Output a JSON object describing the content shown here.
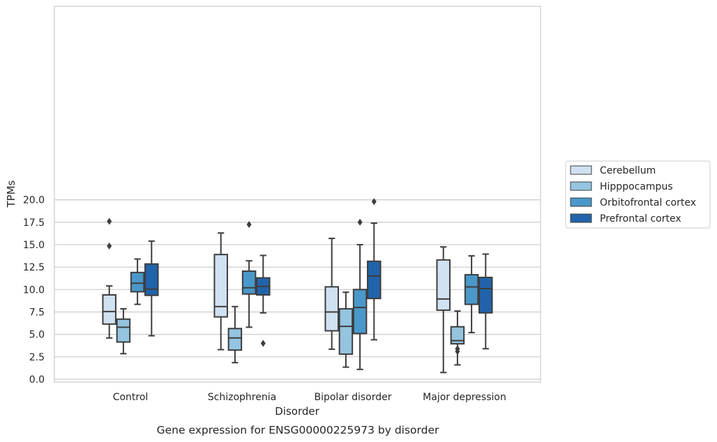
{
  "chart_data": {
    "type": "box",
    "caption": "Gene expression for ENSG00000225973 by disorder",
    "xlabel": "Disorder",
    "ylabel": "TPMs",
    "ylim": [
      -0.3,
      20.75
    ],
    "yticks": [
      0.0,
      2.5,
      5.0,
      7.5,
      10.0,
      12.5,
      15.0,
      17.5,
      20.0
    ],
    "ytick_labels": [
      "0.0",
      "2.5",
      "5.0",
      "7.5",
      "10.0",
      "12.5",
      "15.0",
      "17.5",
      "20.0"
    ],
    "grid": "horizontal",
    "legend_position": "right",
    "categories": [
      "Control",
      "Schizophrenia",
      "Bipolar disorder",
      "Major depression"
    ],
    "series": [
      {
        "name": "Cerebellum",
        "color": "#d0e1f2",
        "boxes": [
          {
            "whisker_low": 4.6,
            "q1": 6.15,
            "median": 7.55,
            "q3": 9.4,
            "whisker_high": 10.4,
            "outliers": [
              14.85,
              17.6
            ]
          },
          {
            "whisker_low": 3.3,
            "q1": 6.95,
            "median": 8.1,
            "q3": 13.9,
            "whisker_high": 16.3,
            "outliers": []
          },
          {
            "whisker_low": 3.35,
            "q1": 5.4,
            "median": 7.5,
            "q3": 10.3,
            "whisker_high": 15.7,
            "outliers": []
          },
          {
            "whisker_low": 0.75,
            "q1": 7.7,
            "median": 8.95,
            "q3": 13.3,
            "whisker_high": 14.75,
            "outliers": []
          }
        ]
      },
      {
        "name": "Hipppocampus",
        "color": "#94c4df",
        "boxes": [
          {
            "whisker_low": 2.85,
            "q1": 4.15,
            "median": 5.8,
            "q3": 6.7,
            "whisker_high": 7.85,
            "outliers": []
          },
          {
            "whisker_low": 1.85,
            "q1": 3.25,
            "median": 4.6,
            "q3": 5.65,
            "whisker_high": 8.1,
            "outliers": []
          },
          {
            "whisker_low": 1.35,
            "q1": 2.8,
            "median": 5.9,
            "q3": 7.85,
            "whisker_high": 9.7,
            "outliers": []
          },
          {
            "whisker_low": 1.6,
            "q1": 3.95,
            "median": 4.3,
            "q3": 5.85,
            "whisker_high": 7.6,
            "outliers": [
              3.1,
              3.4
            ]
          }
        ]
      },
      {
        "name": "Orbitofrontal cortex",
        "color": "#4a98c9",
        "boxes": [
          {
            "whisker_low": 8.35,
            "q1": 9.75,
            "median": 10.7,
            "q3": 11.9,
            "whisker_high": 13.4,
            "outliers": []
          },
          {
            "whisker_low": 5.8,
            "q1": 9.5,
            "median": 10.2,
            "q3": 12.05,
            "whisker_high": 13.2,
            "outliers": [
              17.25
            ]
          },
          {
            "whisker_low": 1.1,
            "q1": 5.1,
            "median": 8.0,
            "q3": 10.0,
            "whisker_high": 15.0,
            "outliers": [
              17.5
            ]
          },
          {
            "whisker_low": 5.2,
            "q1": 8.35,
            "median": 10.3,
            "q3": 11.65,
            "whisker_high": 13.75,
            "outliers": []
          }
        ]
      },
      {
        "name": "Prefrontal cortex",
        "color": "#2163aa",
        "boxes": [
          {
            "whisker_low": 4.85,
            "q1": 9.35,
            "median": 10.05,
            "q3": 12.85,
            "whisker_high": 15.4,
            "outliers": []
          },
          {
            "whisker_low": 7.4,
            "q1": 9.4,
            "median": 10.35,
            "q3": 11.3,
            "whisker_high": 13.8,
            "outliers": [
              4.0
            ]
          },
          {
            "whisker_low": 4.4,
            "q1": 9.0,
            "median": 11.5,
            "q3": 13.15,
            "whisker_high": 17.4,
            "outliers": [
              19.8
            ]
          },
          {
            "whisker_low": 3.4,
            "q1": 7.4,
            "median": 10.1,
            "q3": 11.35,
            "whisker_high": 13.95,
            "outliers": []
          }
        ]
      }
    ]
  }
}
